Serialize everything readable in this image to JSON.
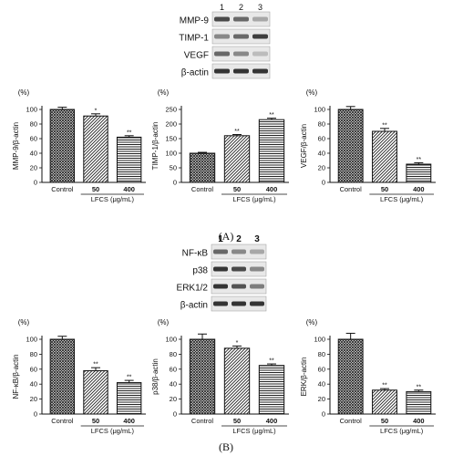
{
  "blot_a": {
    "lanes": [
      "1",
      "2",
      "3"
    ],
    "rows": [
      {
        "label": "MMP-9",
        "intensity": [
          0.75,
          0.6,
          0.3
        ]
      },
      {
        "label": "TIMP-1",
        "intensity": [
          0.45,
          0.6,
          0.8
        ]
      },
      {
        "label": "VEGF",
        "intensity": [
          0.6,
          0.45,
          0.2
        ]
      },
      {
        "label": "β-actin",
        "intensity": [
          0.85,
          0.85,
          0.85
        ]
      }
    ]
  },
  "blot_b": {
    "lanes": [
      "1",
      "2",
      "3"
    ],
    "rows": [
      {
        "label": "NF-κB",
        "intensity": [
          0.6,
          0.45,
          0.3
        ]
      },
      {
        "label": "p38",
        "intensity": [
          0.85,
          0.75,
          0.45
        ]
      },
      {
        "label": "ERK1/2",
        "intensity": [
          0.85,
          0.7,
          0.5
        ]
      },
      {
        "label": "β-actin",
        "intensity": [
          0.85,
          0.85,
          0.85
        ]
      }
    ]
  },
  "panel_labels": {
    "a": "(A)",
    "b": "(B)"
  },
  "chart_data": [
    {
      "type": "bar",
      "unit": "(%)",
      "ylabel": "MMP-9/β-actin",
      "xlabel": "LFCS (μg/mL)",
      "categories": [
        "Control",
        "50",
        "400"
      ],
      "values": [
        100,
        91,
        62
      ],
      "errors": [
        3,
        3,
        2
      ],
      "significance": [
        "",
        "*",
        "**"
      ],
      "patterns": [
        "crosshatch",
        "diagonal",
        "horizontal"
      ],
      "ylim": [
        0,
        100
      ],
      "yticks": [
        0,
        20,
        40,
        60,
        80,
        100
      ]
    },
    {
      "type": "bar",
      "unit": "(%)",
      "ylabel": "TIMP-1/β-actin",
      "xlabel": "LFCS (μg/mL)",
      "categories": [
        "Control",
        "50",
        "400"
      ],
      "values": [
        100,
        160,
        215
      ],
      "errors": [
        3,
        4,
        5
      ],
      "significance": [
        "",
        "**",
        "**"
      ],
      "patterns": [
        "crosshatch",
        "diagonal",
        "horizontal"
      ],
      "ylim": [
        0,
        250
      ],
      "yticks": [
        0,
        50,
        100,
        150,
        200,
        250
      ]
    },
    {
      "type": "bar",
      "unit": "(%)",
      "ylabel": "VEGF/β-actin",
      "xlabel": "LFCS (μg/mL)",
      "categories": [
        "Control",
        "50",
        "400"
      ],
      "values": [
        100,
        70,
        25
      ],
      "errors": [
        4,
        4,
        2
      ],
      "significance": [
        "",
        "**",
        "**"
      ],
      "patterns": [
        "crosshatch",
        "diagonal",
        "horizontal"
      ],
      "ylim": [
        0,
        100
      ],
      "yticks": [
        0,
        20,
        40,
        60,
        80,
        100
      ]
    },
    {
      "type": "bar",
      "unit": "(%)",
      "ylabel": "NF-κB/β-actin",
      "xlabel": "LFCS (μg/mL)",
      "categories": [
        "Control",
        "50",
        "400"
      ],
      "values": [
        100,
        58,
        42
      ],
      "errors": [
        4,
        4,
        3
      ],
      "significance": [
        "",
        "**",
        "**"
      ],
      "patterns": [
        "crosshatch",
        "diagonal",
        "horizontal"
      ],
      "ylim": [
        0,
        100
      ],
      "yticks": [
        0,
        20,
        40,
        60,
        80,
        100
      ]
    },
    {
      "type": "bar",
      "unit": "(%)",
      "ylabel": "p38/β-actin",
      "xlabel": "LFCS (μg/mL)",
      "categories": [
        "Control",
        "50",
        "400"
      ],
      "values": [
        100,
        88,
        65
      ],
      "errors": [
        7,
        3,
        2
      ],
      "significance": [
        "",
        "*",
        "**"
      ],
      "patterns": [
        "crosshatch",
        "diagonal",
        "horizontal"
      ],
      "ylim": [
        0,
        100
      ],
      "yticks": [
        0,
        20,
        40,
        60,
        80,
        100
      ]
    },
    {
      "type": "bar",
      "unit": "(%)",
      "ylabel": "ERK/β-actin",
      "xlabel": "LFCS (μg/mL)",
      "categories": [
        "Control",
        "50",
        "400"
      ],
      "values": [
        100,
        32,
        30
      ],
      "errors": [
        8,
        2,
        2
      ],
      "significance": [
        "",
        "**",
        "**"
      ],
      "patterns": [
        "crosshatch",
        "diagonal",
        "horizontal"
      ],
      "ylim": [
        0,
        100
      ],
      "yticks": [
        0,
        20,
        40,
        60,
        80,
        100
      ]
    }
  ]
}
